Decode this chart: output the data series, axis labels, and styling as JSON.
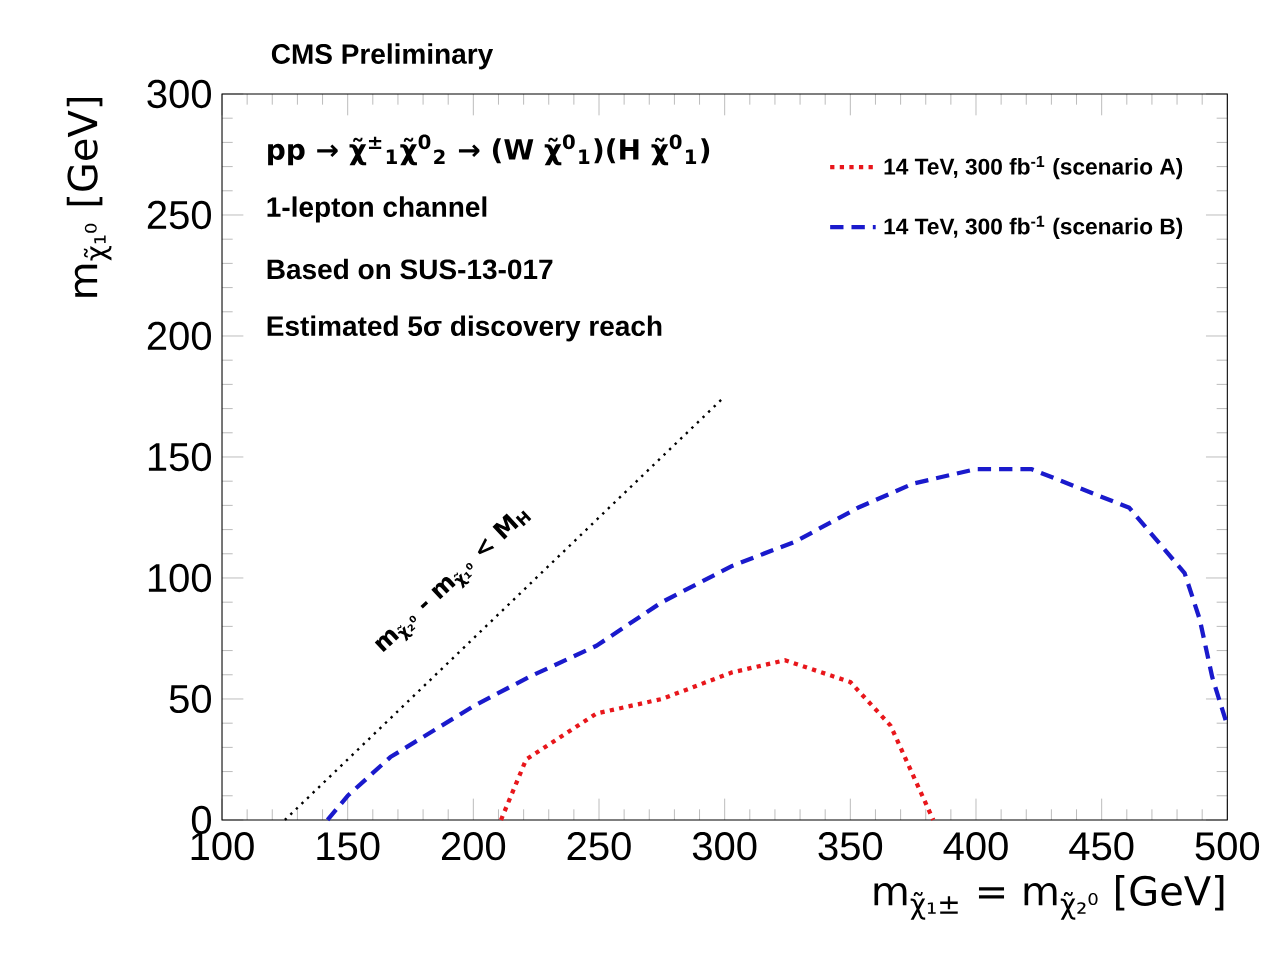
{
  "chart_data": {
    "type": "line",
    "title": "**CMS Preliminary**",
    "xlabel": "m$_{χ̃₁±}$ = m$_{χ̃₂⁰}$ [GeV]",
    "ylabel": "m$_{χ̃₁⁰}$ [GeV]",
    "xlim": [
      100,
      500
    ],
    "ylim": [
      0,
      300
    ],
    "xticks": [
      100,
      150,
      200,
      250,
      300,
      350,
      400,
      450,
      500
    ],
    "yticks": [
      0,
      50,
      100,
      150,
      200,
      250,
      300
    ],
    "legend": "top right",
    "annotations": [
      "pp → χ̃$^{±}$$_{1}$χ̃$^{0}$$_{2}$ → (W χ̃$^{0}$$_{1}$)(H χ̃$^{0}$$_{1}$)",
      "1-lepton channel",
      "Based on SUS-13-017",
      "Estimated 5σ discovery reach",
      "m$_{χ̃₂⁰}$ - m$_{χ̃₁⁰}$ < M$_{H}$"
    ],
    "series": [
      {
        "name": "14 TeV, 300 fb$^{-1}$ (scenario A)",
        "color": "#e8161b",
        "line_style": "dotted",
        "x": [
          211,
          221,
          249,
          275,
          303,
          324,
          350,
          366,
          383
        ],
        "values": [
          0,
          25,
          44,
          50,
          61,
          66,
          57,
          39,
          0
        ]
      },
      {
        "name": "14 TeV, 300 fb$^{-1}$ (scenario B)",
        "color": "#1a1acc",
        "line_style": "dashed",
        "x": [
          142,
          150,
          167,
          200,
          222,
          249,
          275,
          303,
          328,
          353,
          375,
          400,
          422,
          461,
          483,
          489,
          494,
          500
        ],
        "values": [
          0,
          10,
          26,
          47,
          59,
          72,
          90,
          105,
          115,
          129,
          139,
          145,
          145,
          129,
          102,
          83,
          59,
          39
        ]
      },
      {
        "color": "#000000",
        "line_style": "dotted",
        "x": [
          125,
          300
        ],
        "values": [
          0,
          175
        ]
      }
    ]
  }
}
